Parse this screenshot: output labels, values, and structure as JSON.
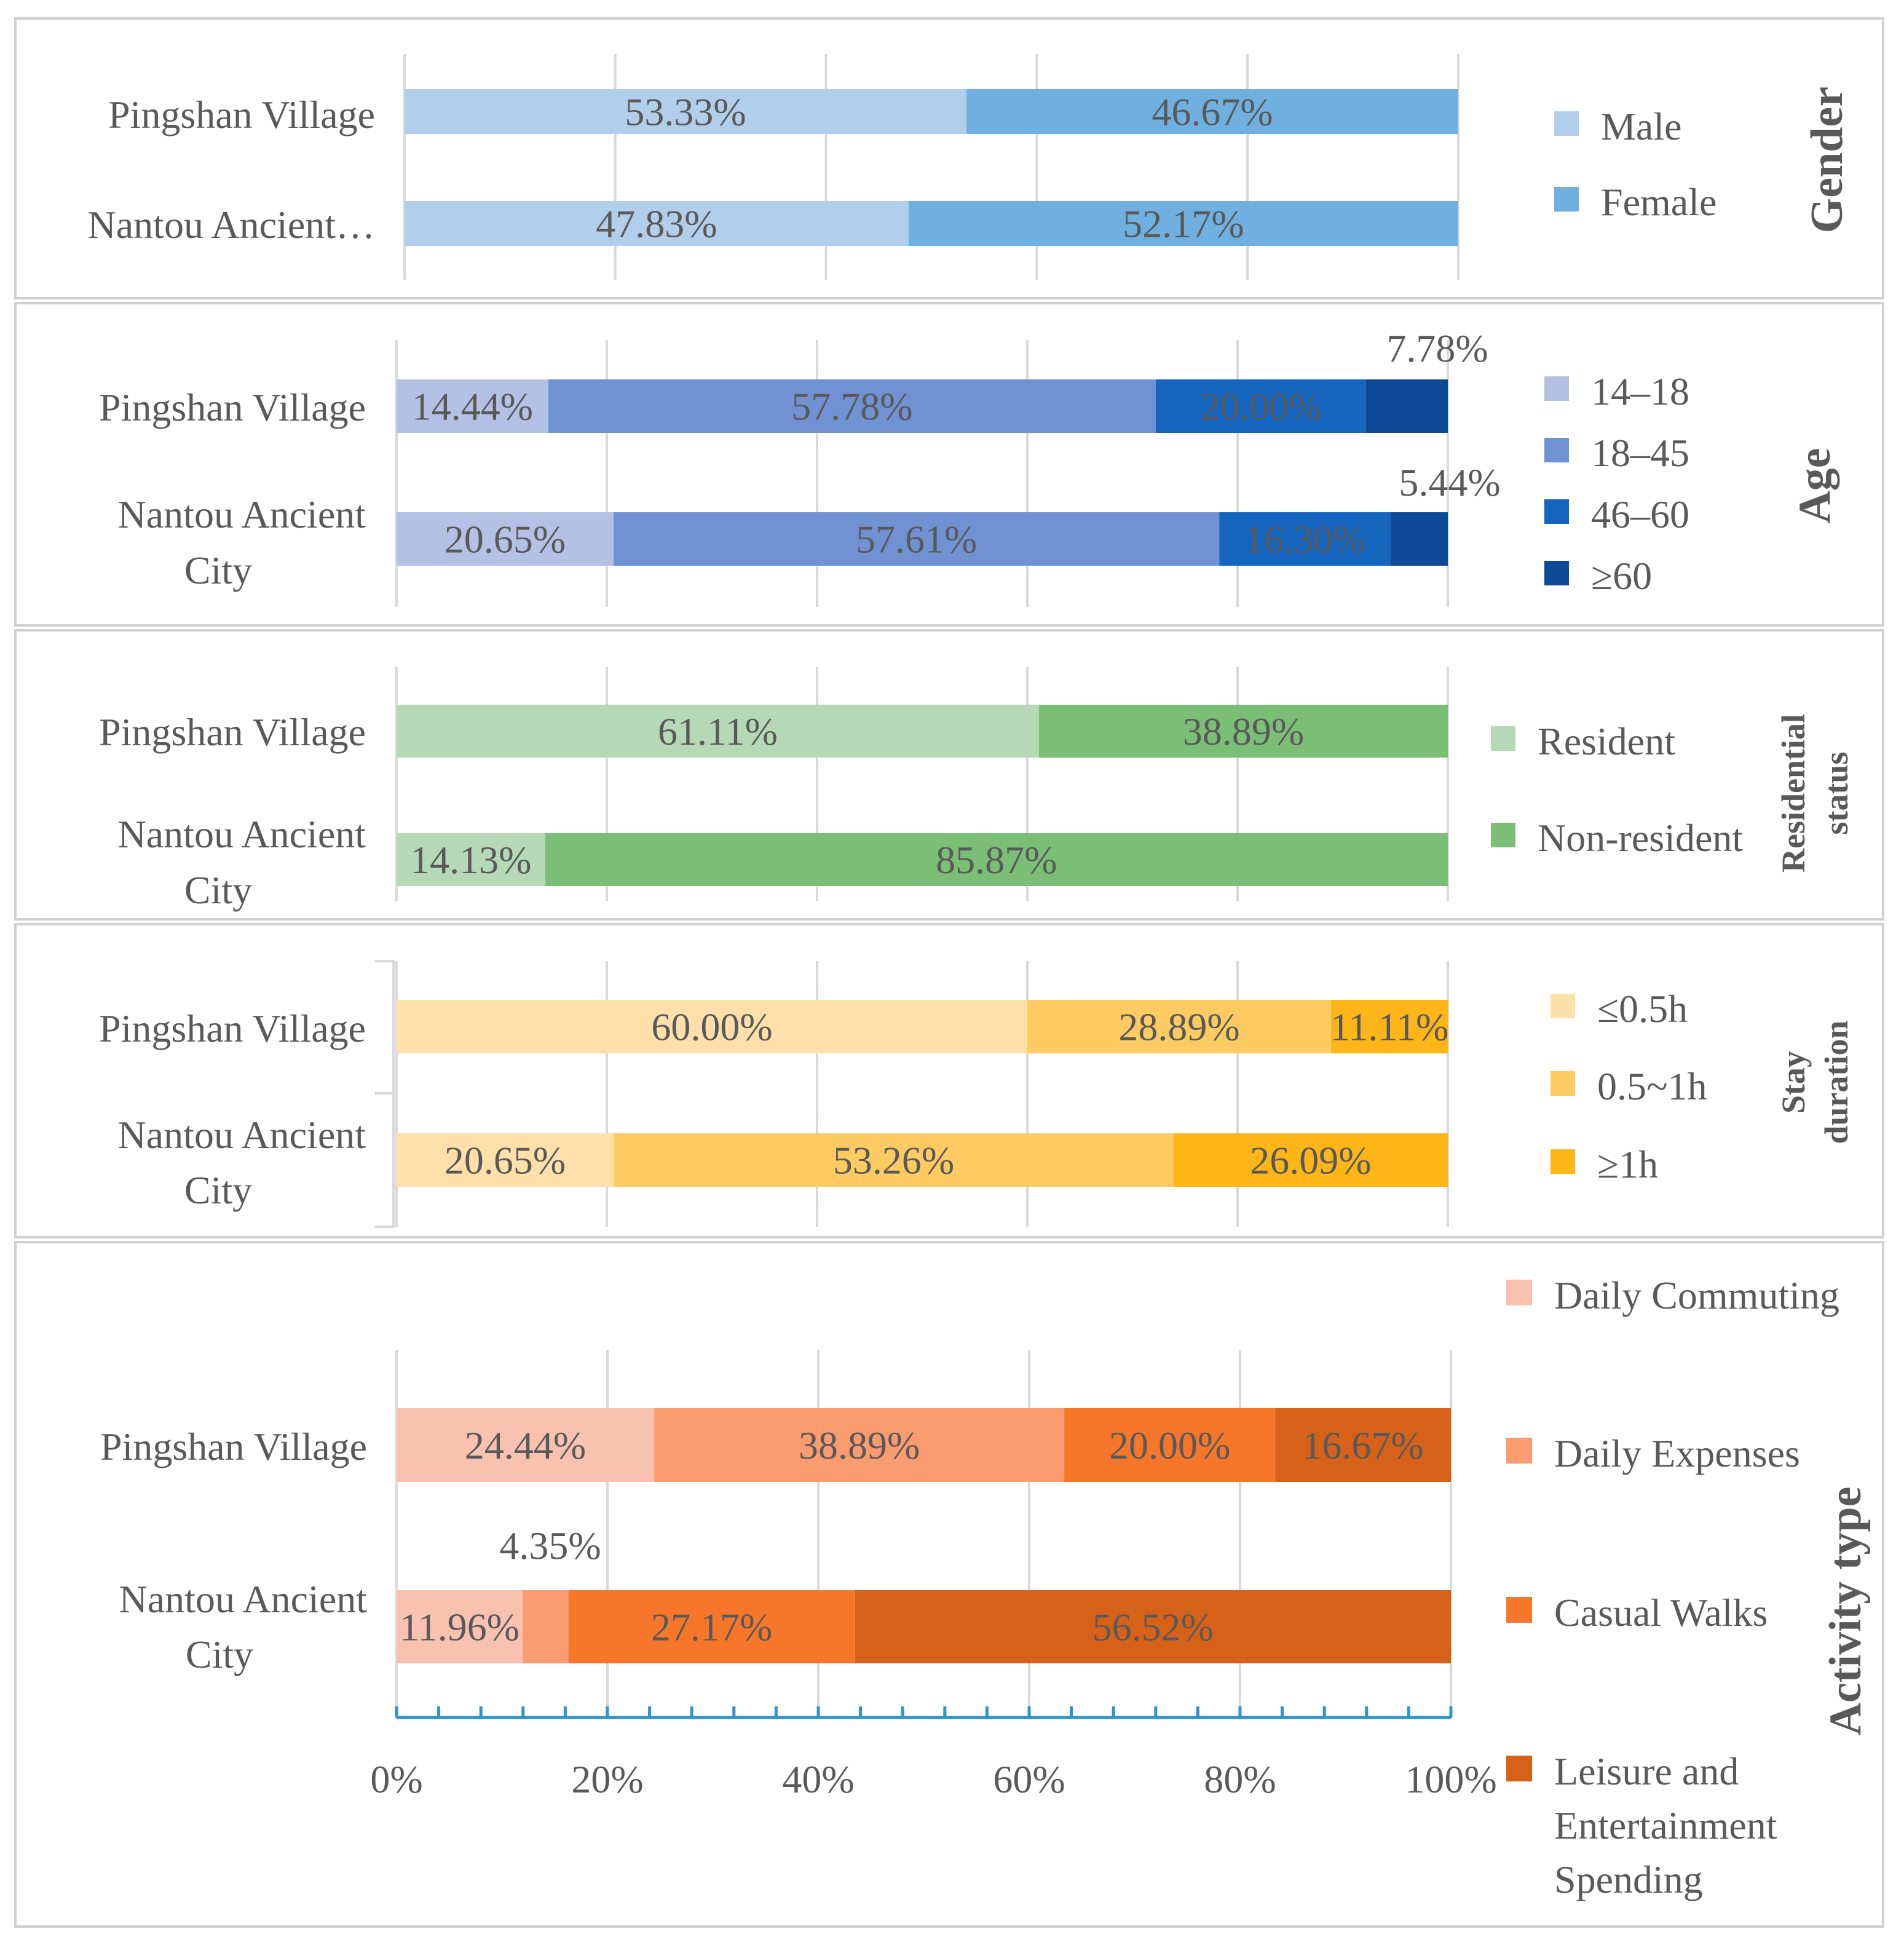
{
  "chart_data": [
    {
      "id": "gender",
      "type": "bar",
      "orientation": "horizontal",
      "stacked": "percent",
      "title": "Gender",
      "title_style": "bold",
      "categories": [
        "Pingshan Village",
        "Nantou Ancient…"
      ],
      "series": [
        {
          "name": "Male",
          "color": "#b1ceea",
          "values": [
            53.33,
            47.83
          ],
          "labels": [
            "53.33%",
            "47.83%"
          ]
        },
        {
          "name": "Female",
          "color": "#6fb0e0",
          "values": [
            46.67,
            52.17
          ],
          "labels": [
            "46.67%",
            "52.17%"
          ]
        }
      ],
      "xlim": [
        0,
        100
      ],
      "grid": true,
      "legend": "right"
    },
    {
      "id": "age",
      "type": "bar",
      "orientation": "horizontal",
      "stacked": "percent",
      "title": "Age",
      "title_style": "bold",
      "categories": [
        "Pingshan Village",
        "Nantou Ancient City"
      ],
      "series": [
        {
          "name": "14–18",
          "color": "#b4c1e4",
          "values": [
            14.44,
            20.65
          ],
          "labels": [
            "14.44%",
            "20.65%"
          ]
        },
        {
          "name": "18–45",
          "color": "#7092d3",
          "values": [
            57.78,
            57.61
          ],
          "labels": [
            "57.78%",
            "57.61%"
          ]
        },
        {
          "name": "46–60",
          "color": "#1565be",
          "values": [
            20.0,
            16.3
          ],
          "labels": [
            "20.00%",
            "16.30%"
          ]
        },
        {
          "name": "≥60",
          "color": "#0f4a96",
          "values": [
            7.78,
            5.44
          ],
          "labels": [
            "7.78%",
            "5.44%"
          ]
        }
      ],
      "xlim": [
        0,
        100
      ],
      "grid": true,
      "legend": "right"
    },
    {
      "id": "residential",
      "type": "bar",
      "orientation": "horizontal",
      "stacked": "percent",
      "title": "Residential status",
      "title_style": "bold",
      "categories": [
        "Pingshan Village",
        "Nantou Ancient City"
      ],
      "series": [
        {
          "name": "Resident",
          "color": "#b5d9b7",
          "values": [
            61.11,
            14.13
          ],
          "labels": [
            "61.11%",
            "14.13%"
          ]
        },
        {
          "name": "Non-resident",
          "color": "#7bbf76",
          "values": [
            38.89,
            85.87
          ],
          "labels": [
            "38.89%",
            "85.87%"
          ]
        }
      ],
      "xlim": [
        0,
        100
      ],
      "grid": true,
      "legend": "right"
    },
    {
      "id": "stay",
      "type": "bar",
      "orientation": "horizontal",
      "stacked": "percent",
      "title": "Stay duration",
      "title_style": "bold",
      "categories": [
        "Pingshan Village",
        "Nantou Ancient City"
      ],
      "series": [
        {
          "name": "≤0.5h",
          "color": "#ffdfaa",
          "values": [
            60.0,
            20.65
          ],
          "labels": [
            "60.00%",
            "20.65%"
          ]
        },
        {
          "name": "0.5~1h",
          "color": "#fecb62",
          "values": [
            28.89,
            53.26
          ],
          "labels": [
            "28.89%",
            "53.26%"
          ]
        },
        {
          "name": "≥1h",
          "color": "#fdb517",
          "values": [
            11.11,
            26.09
          ],
          "labels": [
            "11.11%",
            "26.09%"
          ]
        }
      ],
      "xlim": [
        0,
        100
      ],
      "grid": true,
      "legend": "right"
    },
    {
      "id": "activity",
      "type": "bar",
      "orientation": "horizontal",
      "stacked": "percent",
      "title": "Activity type",
      "title_style": "bold",
      "categories": [
        "Pingshan Village",
        "Nantou Ancient City"
      ],
      "series": [
        {
          "name": "Daily Commuting",
          "color": "#f9c1af",
          "values": [
            24.44,
            11.96
          ],
          "labels": [
            "24.44%",
            "11.96%"
          ]
        },
        {
          "name": "Daily Expenses",
          "color": "#fb9b70",
          "values": [
            38.89,
            4.35
          ],
          "labels": [
            "38.89%",
            "4.35%"
          ]
        },
        {
          "name": "Casual Walks",
          "color": "#f7772a",
          "values": [
            20.0,
            27.17
          ],
          "labels": [
            "20.00%",
            "27.17%"
          ]
        },
        {
          "name": "Leisure and Entertainment Spending",
          "color": "#d66219",
          "values": [
            16.67,
            56.52
          ],
          "labels": [
            "16.67%",
            "56.52%"
          ]
        }
      ],
      "xlim": [
        0,
        100
      ],
      "xticks": [
        "0%",
        "20%",
        "40%",
        "60%",
        "80%",
        "100%"
      ],
      "grid": true,
      "legend": "right"
    }
  ]
}
